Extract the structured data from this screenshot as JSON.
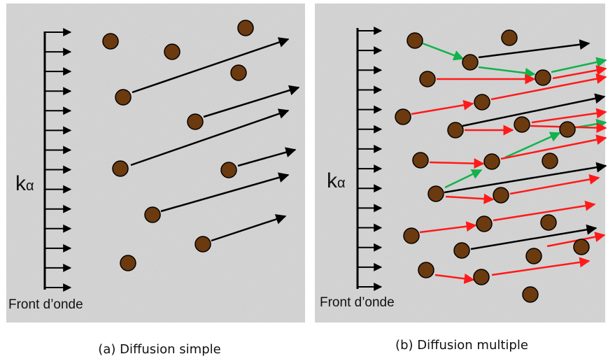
{
  "panel_a": {
    "k_label": "k",
    "k_subscript": "α",
    "wavefront_label": "Front d’onde",
    "caption": "(a) Diffusion simple"
  },
  "panel_b": {
    "k_label": "k",
    "k_subscript": "α",
    "wavefront_label": "Front d’onde",
    "caption": "(b) Diffusion multiple"
  },
  "colors": {
    "particle": "#6b3a0f",
    "ray_primary": "#000000",
    "ray_secondary": "#ff1a1a",
    "ray_tertiary": "#12b24c",
    "background": "#c9c9c9"
  }
}
